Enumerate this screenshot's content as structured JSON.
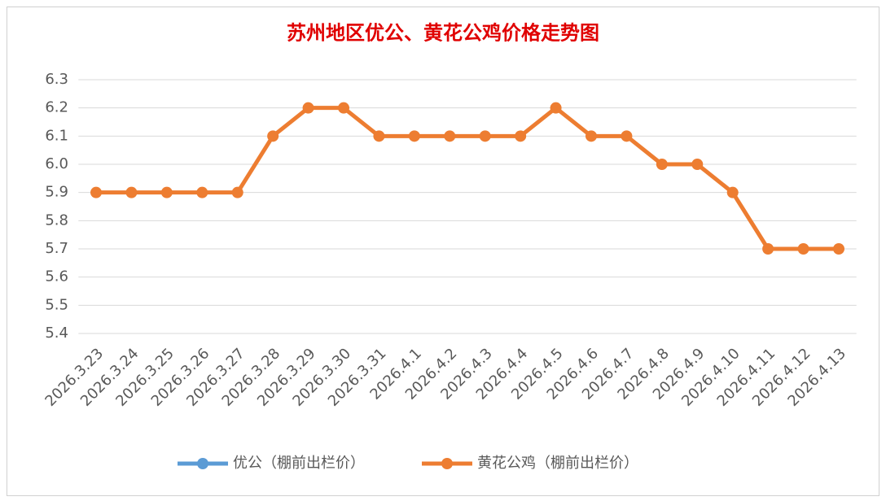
{
  "chart_data": {
    "type": "line",
    "title": "苏州地区优公、黄花公鸡价格走势图",
    "categories": [
      "2026.3.23",
      "2026.3.24",
      "2026.3.25",
      "2026.3.26",
      "2026.3.27",
      "2026.3.28",
      "2026.3.29",
      "2026.3.30",
      "2026.3.31",
      "2026.4.1",
      "2026.4.2",
      "2026.4.3",
      "2026.4.4",
      "2026.4.5",
      "2026.4.6",
      "2026.4.7",
      "2026.4.8",
      "2026.4.9",
      "2026.4.10",
      "2026.4.11",
      "2026.4.12",
      "2026.4.13"
    ],
    "series": [
      {
        "name": "优公（棚前出栏价）",
        "color": "#5b9bd5",
        "values": [
          null,
          null,
          null,
          null,
          null,
          null,
          null,
          null,
          null,
          null,
          null,
          null,
          null,
          null,
          null,
          null,
          null,
          null,
          null,
          null,
          null,
          null
        ]
      },
      {
        "name": "黄花公鸡（棚前出栏价）",
        "color": "#ed7d31",
        "values": [
          5.9,
          5.9,
          5.9,
          5.9,
          5.9,
          6.1,
          6.2,
          6.2,
          6.1,
          6.1,
          6.1,
          6.1,
          6.1,
          6.2,
          6.1,
          6.1,
          6.0,
          6.0,
          5.9,
          5.7,
          5.7,
          5.7
        ]
      }
    ],
    "ylim": [
      5.4,
      6.3
    ],
    "yticks": [
      5.4,
      5.5,
      5.6,
      5.7,
      5.8,
      5.9,
      {
        "value": 6,
        "label": "6.0"
      },
      6.1,
      6.2,
      6.3
    ],
    "grid": true,
    "legend": "bottom",
    "title_color": "#e00000"
  }
}
